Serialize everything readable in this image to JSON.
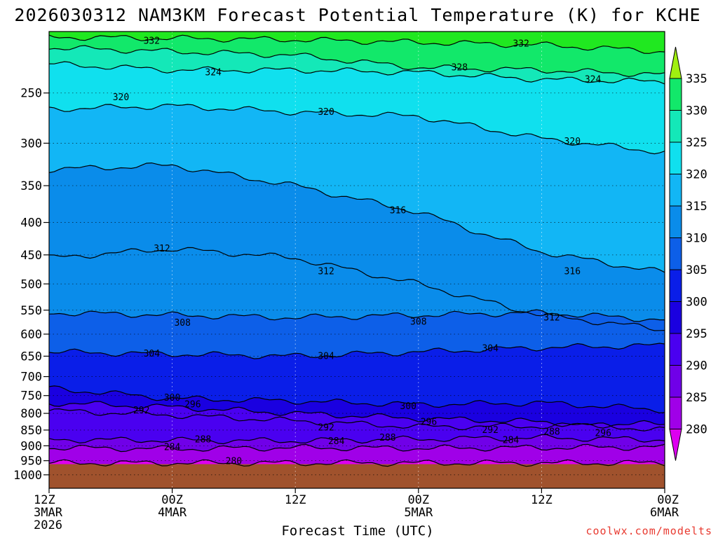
{
  "chart_data": {
    "type": "heatmap",
    "title": "2026030312 NAM3KM Forecast Potential Temperature (K) for KCHE",
    "xlabel": "Forecast Time (UTC)",
    "ylabel": "",
    "y_scale": "log-pressure",
    "y_inverted": true,
    "ylim": [
      1050,
      200
    ],
    "y_ticks": [
      250,
      300,
      350,
      400,
      450,
      500,
      550,
      600,
      650,
      700,
      750,
      800,
      850,
      900,
      950,
      1000
    ],
    "x_ticks": [
      {
        "hour": 0,
        "lines": [
          "12Z",
          "3MAR",
          "2026"
        ]
      },
      {
        "hour": 12,
        "lines": [
          "00Z",
          "4MAR"
        ]
      },
      {
        "hour": 24,
        "lines": [
          "12Z"
        ]
      },
      {
        "hour": 36,
        "lines": [
          "00Z",
          "5MAR"
        ]
      },
      {
        "hour": 48,
        "lines": [
          "12Z"
        ]
      },
      {
        "hour": 60,
        "lines": [
          "00Z",
          "6MAR"
        ]
      }
    ],
    "xlim": [
      0,
      60
    ],
    "grid": true,
    "colorbar": {
      "levels": [
        280,
        285,
        290,
        295,
        300,
        305,
        310,
        315,
        320,
        325,
        330,
        335
      ],
      "colors": [
        "#dd00f0",
        "#a000e8",
        "#7000e8",
        "#4a00f0",
        "#1a00e0",
        "#0a1ee8",
        "#0d5fe8",
        "#0a8cea",
        "#12b6f5",
        "#10e0ee",
        "#14e8b8",
        "#12e86a",
        "#20e820",
        "#a0f010"
      ]
    },
    "surface_color": "#a0522d",
    "surface_pressure": 962,
    "contours": [
      {
        "value": 280,
        "pressure": [
          958,
          958,
          958,
          958,
          958,
          958
        ],
        "label_hour": 18
      },
      {
        "value": 284,
        "pressure": [
          906,
          910,
          906,
          908,
          906,
          904
        ],
        "label_hour": 12
      },
      {
        "value": 288,
        "pressure": [
          880,
          882,
          884,
          878,
          874,
          880
        ],
        "label_hour": 16
      },
      {
        "value": 292,
        "pressure": [
          792,
          805,
          822,
          840,
          838,
          830
        ],
        "label_hour": 26
      },
      {
        "value": 296,
        "pressure": [
          770,
          782,
          800,
          815,
          825,
          850
        ],
        "label_hour": 14
      },
      {
        "value": 300,
        "pressure": [
          730,
          758,
          765,
          775,
          770,
          790
        ],
        "label_hour": 12
      },
      {
        "value": 304,
        "pressure": [
          640,
          645,
          650,
          640,
          630,
          625
        ],
        "label_hour": 10
      },
      {
        "value": 308,
        "pressure": [
          555,
          560,
          565,
          560,
          555,
          570
        ],
        "label_hour": 13
      },
      {
        "value": 312,
        "pressure": [
          455,
          440,
          455,
          500,
          560,
          590
        ],
        "label_hour": 11
      },
      {
        "value": 316,
        "pressure": [
          330,
          325,
          350,
          385,
          445,
          480
        ],
        "label_hour": 33
      },
      {
        "value": 320,
        "pressure": [
          265,
          262,
          268,
          272,
          295,
          310
        ],
        "label_hour": 26
      },
      {
        "value": 324,
        "pressure": [
          225,
          230,
          230,
          232,
          238,
          240
        ],
        "label_hour": 16
      },
      {
        "value": 328,
        "pressure": [
          212,
          215,
          218,
          228,
          230,
          234
        ],
        "label_hour": 40
      },
      {
        "value": 332,
        "pressure": [
          204,
          205,
          206,
          208,
          210,
          215
        ],
        "label_hour": 10
      }
    ],
    "contour_labels": [
      {
        "value": 332,
        "hour": 10,
        "pressure": 207
      },
      {
        "value": 332,
        "hour": 46,
        "pressure": 209
      },
      {
        "value": 328,
        "hour": 40,
        "pressure": 228
      },
      {
        "value": 324,
        "hour": 16,
        "pressure": 232
      },
      {
        "value": 324,
        "hour": 53,
        "pressure": 238
      },
      {
        "value": 320,
        "hour": 7,
        "pressure": 254
      },
      {
        "value": 320,
        "hour": 27,
        "pressure": 268
      },
      {
        "value": 320,
        "hour": 51,
        "pressure": 298
      },
      {
        "value": 316,
        "hour": 34,
        "pressure": 383
      },
      {
        "value": 316,
        "hour": 51,
        "pressure": 478
      },
      {
        "value": 312,
        "hour": 11,
        "pressure": 440
      },
      {
        "value": 312,
        "hour": 27,
        "pressure": 478
      },
      {
        "value": 312,
        "hour": 49,
        "pressure": 565
      },
      {
        "value": 308,
        "hour": 13,
        "pressure": 576
      },
      {
        "value": 308,
        "hour": 36,
        "pressure": 574
      },
      {
        "value": 304,
        "hour": 10,
        "pressure": 644
      },
      {
        "value": 304,
        "hour": 27,
        "pressure": 650
      },
      {
        "value": 304,
        "hour": 43,
        "pressure": 632
      },
      {
        "value": 300,
        "hour": 12,
        "pressure": 756
      },
      {
        "value": 300,
        "hour": 35,
        "pressure": 780
      },
      {
        "value": 296,
        "hour": 14,
        "pressure": 775
      },
      {
        "value": 296,
        "hour": 37,
        "pressure": 826
      },
      {
        "value": 296,
        "hour": 54,
        "pressure": 860
      },
      {
        "value": 292,
        "hour": 9,
        "pressure": 792
      },
      {
        "value": 292,
        "hour": 27,
        "pressure": 843
      },
      {
        "value": 292,
        "hour": 43,
        "pressure": 850
      },
      {
        "value": 288,
        "hour": 15,
        "pressure": 880
      },
      {
        "value": 288,
        "hour": 33,
        "pressure": 874
      },
      {
        "value": 288,
        "hour": 49,
        "pressure": 856
      },
      {
        "value": 284,
        "hour": 12,
        "pressure": 905
      },
      {
        "value": 284,
        "hour": 28,
        "pressure": 885
      },
      {
        "value": 284,
        "hour": 45,
        "pressure": 882
      },
      {
        "value": 280,
        "hour": 18,
        "pressure": 952
      }
    ]
  },
  "credit": "coolwx.com/modelts"
}
